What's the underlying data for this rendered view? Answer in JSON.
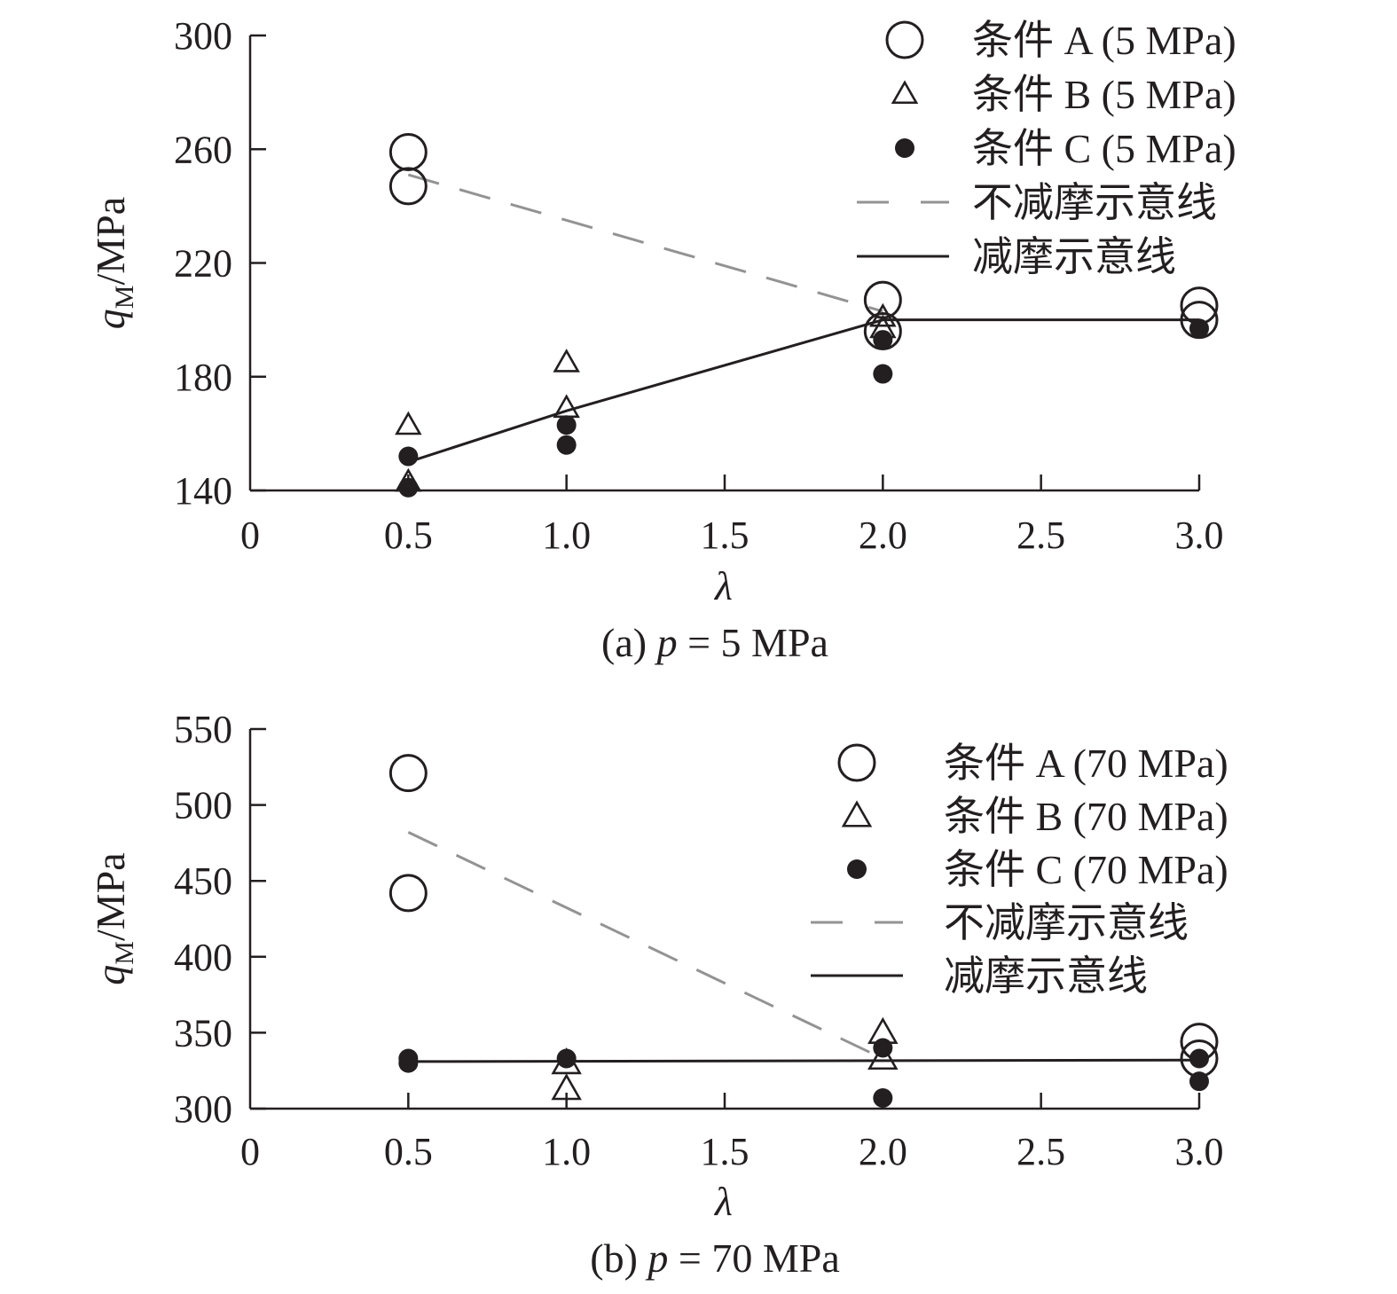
{
  "chart_data": [
    {
      "type": "scatter",
      "caption": "(a) p = 5 MPa",
      "caption_prefix": "(a) ",
      "caption_var": "p",
      "caption_suffix": " = 5 MPa",
      "xlabel": "λ",
      "ylabel": "qM/MPa",
      "ylabel_var": "q",
      "ylabel_sub": "M",
      "ylabel_unit": "/MPa",
      "xlim": [
        0,
        3.0
      ],
      "ylim": [
        140,
        300
      ],
      "xticks": [
        0,
        0.5,
        1.0,
        1.5,
        2.0,
        2.5,
        3.0
      ],
      "xtick_labels": [
        "0",
        "0.5",
        "1.0",
        "1.5",
        "2.0",
        "2.5",
        "3.0"
      ],
      "yticks": [
        140,
        180,
        220,
        260,
        300
      ],
      "ytick_labels": [
        "140",
        "180",
        "220",
        "260",
        "300"
      ],
      "legend_position": "top-right",
      "series": [
        {
          "name": "条件 A (5 MPa)",
          "marker": "circle-open",
          "x": [
            0.5,
            0.5,
            2.0,
            2.0,
            3.0,
            3.0
          ],
          "y": [
            259,
            247,
            207,
            196,
            205,
            200
          ]
        },
        {
          "name": "条件 B (5 MPa)",
          "marker": "triangle-open",
          "x": [
            0.5,
            0.5,
            1.0,
            1.0,
            2.0,
            2.0
          ],
          "y": [
            163,
            143,
            185,
            169,
            201,
            197
          ]
        },
        {
          "name": "条件 C (5 MPa)",
          "marker": "circle-filled",
          "x": [
            0.5,
            0.5,
            1.0,
            1.0,
            2.0,
            2.0,
            3.0
          ],
          "y": [
            152,
            141,
            163,
            156,
            193,
            181,
            197
          ]
        }
      ],
      "lines": [
        {
          "name": "不减摩示意线",
          "style": "dashed",
          "x": [
            0.5,
            2.0
          ],
          "y": [
            251,
            203
          ]
        },
        {
          "name": "减摩示意线",
          "style": "solid",
          "x": [
            0.5,
            1.0,
            2.0,
            3.0
          ],
          "y": [
            150,
            168,
            200,
            200
          ]
        }
      ]
    },
    {
      "type": "scatter",
      "caption": "(b) p = 70 MPa",
      "caption_prefix": "(b) ",
      "caption_var": "p",
      "caption_suffix": " = 70 MPa",
      "xlabel": "λ",
      "ylabel": "qM/MPa",
      "ylabel_var": "q",
      "ylabel_sub": "M",
      "ylabel_unit": "/MPa",
      "xlim": [
        0,
        3.0
      ],
      "ylim": [
        300,
        550
      ],
      "xticks": [
        0,
        0.5,
        1.0,
        1.5,
        2.0,
        2.5,
        3.0
      ],
      "xtick_labels": [
        "0",
        "0.5",
        "1.0",
        "1.5",
        "2.0",
        "2.5",
        "3.0"
      ],
      "yticks": [
        300,
        350,
        400,
        450,
        500,
        550
      ],
      "ytick_labels": [
        "300",
        "350",
        "400",
        "450",
        "500",
        "550"
      ],
      "legend_position": "top-right",
      "series": [
        {
          "name": "条件 A (70 MPa)",
          "marker": "circle-open",
          "x": [
            0.5,
            0.5,
            3.0,
            3.0
          ],
          "y": [
            521,
            442,
            344,
            333
          ]
        },
        {
          "name": "条件 B (70 MPa)",
          "marker": "triangle-open",
          "x": [
            1.0,
            1.0,
            2.0,
            2.0
          ],
          "y": [
            330,
            313,
            350,
            333
          ]
        },
        {
          "name": "条件 C (70 MPa)",
          "marker": "circle-filled",
          "x": [
            0.5,
            0.5,
            1.0,
            2.0,
            2.0,
            3.0,
            3.0
          ],
          "y": [
            333,
            330,
            333,
            340,
            307,
            333,
            318
          ]
        }
      ],
      "lines": [
        {
          "name": "不减摩示意线",
          "style": "dashed",
          "x": [
            0.5,
            2.0
          ],
          "y": [
            482,
            333
          ]
        },
        {
          "name": "减摩示意线",
          "style": "solid",
          "x": [
            0.5,
            3.0
          ],
          "y": [
            331,
            332
          ]
        }
      ]
    }
  ]
}
